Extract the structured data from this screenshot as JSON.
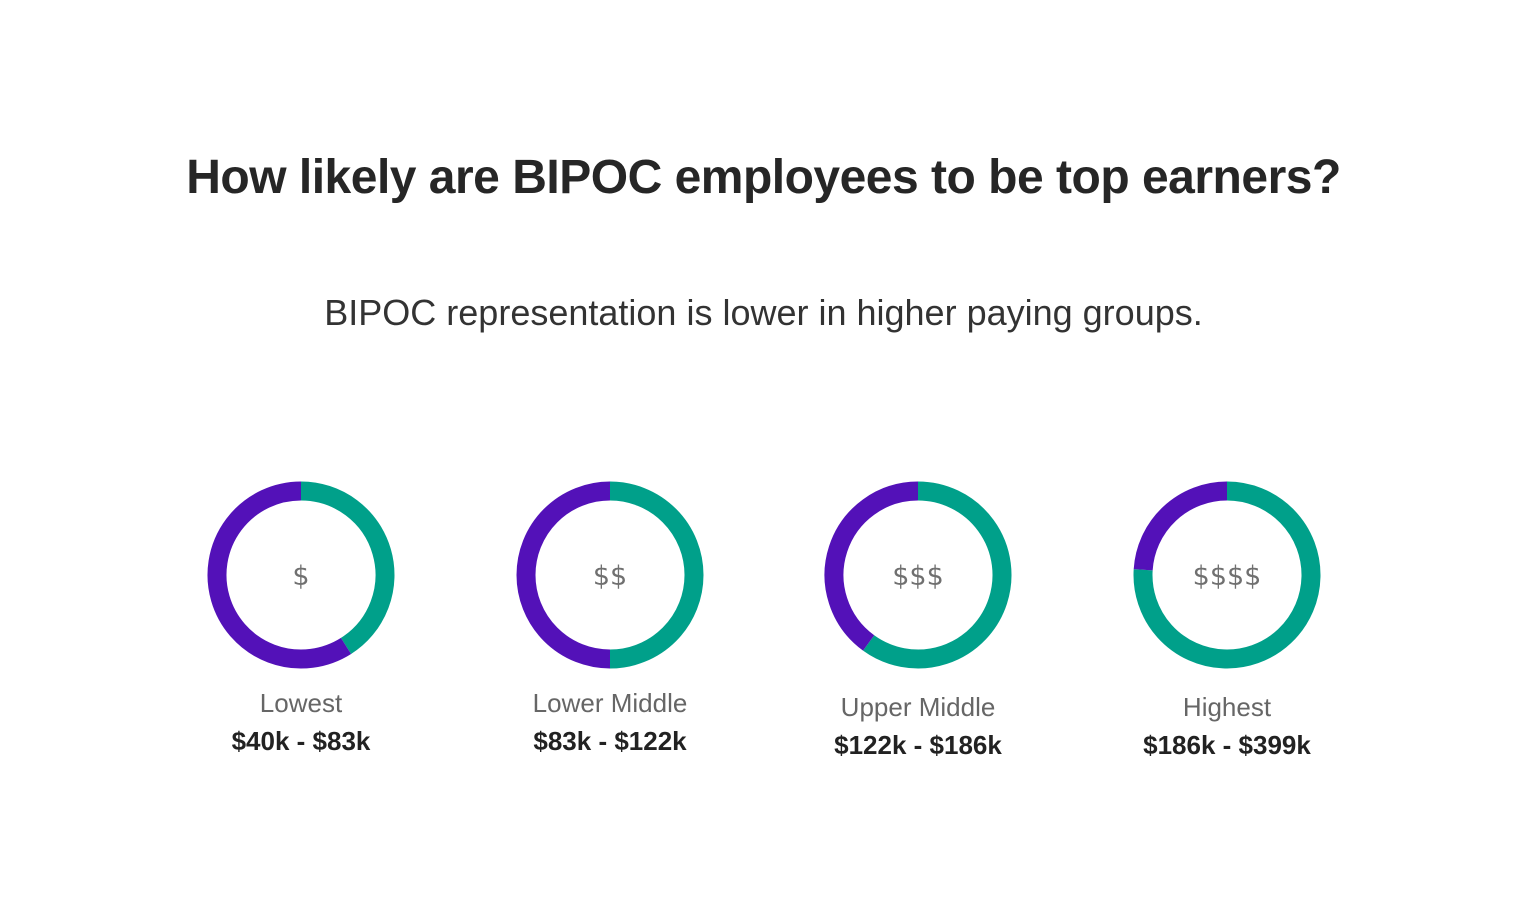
{
  "header": {
    "title": "How likely are BIPOC employees to be top earners?",
    "subtitle": "BIPOC representation is lower in higher paying groups."
  },
  "colors": {
    "bipoc": "#5311b8",
    "other": "#00a08a"
  },
  "chart_data": {
    "type": "pie",
    "title": "How likely are BIPOC employees to be top earners?",
    "subtitle": "BIPOC representation is lower in higher paying groups.",
    "legend": "none",
    "grid": false,
    "charts": [
      {
        "symbol": "$",
        "label": "Lowest",
        "range": "$40k - $83k",
        "bipoc_share": 0.59
      },
      {
        "symbol": "$$",
        "label": "Lower Middle",
        "range": "$83k - $122k",
        "bipoc_share": 0.5
      },
      {
        "symbol": "$$$",
        "label": "Upper Middle",
        "range": "$122k - $186k",
        "bipoc_share": 0.4
      },
      {
        "symbol": "$$$$",
        "label": "Highest",
        "range": "$186k - $399k",
        "bipoc_share": 0.24
      }
    ]
  }
}
